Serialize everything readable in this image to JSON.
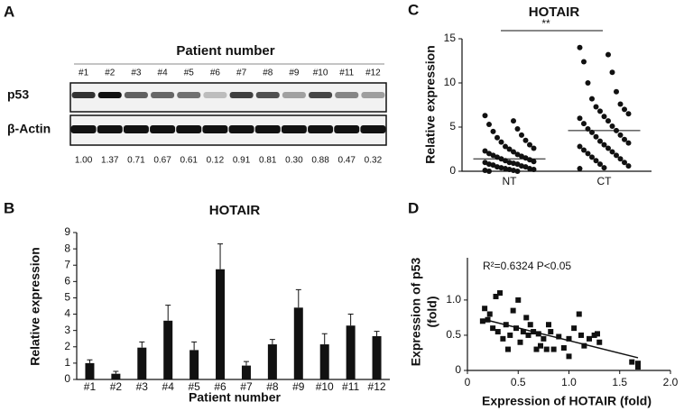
{
  "blot": {
    "panel_label": "A",
    "title": "Patient number",
    "lanes": [
      "#1",
      "#2",
      "#3",
      "#4",
      "#5",
      "#6",
      "#7",
      "#8",
      "#9",
      "#10",
      "#11",
      "#12"
    ],
    "rows": [
      "p53",
      "β-Actin"
    ],
    "ratios": [
      "1.00",
      "1.37",
      "0.71",
      "0.67",
      "0.61",
      "0.12",
      "0.91",
      "0.81",
      "0.30",
      "0.88",
      "0.47",
      "0.32"
    ]
  },
  "chart_data": [
    {
      "type": "bar",
      "panel_label": "B",
      "title": "HOTAIR",
      "y_label": "Relative expression",
      "x_label": "Patient number",
      "categories": [
        "#1",
        "#2",
        "#3",
        "#4",
        "#5",
        "#6",
        "#7",
        "#8",
        "#9",
        "#10",
        "#11",
        "#12"
      ],
      "values": [
        1.0,
        0.35,
        1.95,
        3.6,
        1.8,
        6.75,
        0.85,
        2.15,
        4.4,
        2.15,
        3.3,
        2.65
      ],
      "errors": [
        0.2,
        0.15,
        0.35,
        0.95,
        0.5,
        1.55,
        0.25,
        0.3,
        1.1,
        0.65,
        0.7,
        0.3
      ],
      "color": "#111111",
      "ylim": [
        0,
        9
      ],
      "yticks": [
        0,
        1,
        2,
        3,
        4,
        5,
        6,
        7,
        8,
        9
      ]
    },
    {
      "type": "strip",
      "panel_label": "C",
      "title": "HOTAIR",
      "y_label": "Relative expression",
      "annotation": "**",
      "categories": [
        "NT",
        "CT"
      ],
      "series": [
        {
          "name": "NT",
          "color": "#111111",
          "mean": 1.4,
          "values": [
            6.3,
            5.7,
            5.3,
            4.8,
            4.5,
            4.1,
            3.8,
            3.5,
            3.3,
            3.0,
            2.8,
            2.6,
            2.5,
            2.3,
            2.2,
            2.0,
            1.9,
            1.8,
            1.7,
            1.6,
            1.5,
            1.4,
            1.3,
            1.2,
            1.1,
            1.0,
            1.0,
            0.9,
            0.8,
            0.8,
            0.7,
            0.6,
            0.5,
            0.5,
            0.4,
            0.3,
            0.3,
            0.2,
            0.2,
            0.1,
            0.1,
            0.0,
            0.0
          ]
        },
        {
          "name": "CT",
          "color": "#111111",
          "mean": 4.6,
          "values": [
            14.0,
            13.2,
            12.4,
            11.2,
            10.0,
            9.0,
            8.2,
            7.6,
            7.3,
            7.0,
            6.8,
            6.5,
            6.2,
            6.0,
            5.7,
            5.4,
            5.1,
            4.8,
            4.6,
            4.4,
            4.1,
            3.9,
            3.6,
            3.4,
            3.2,
            3.0,
            2.8,
            2.6,
            2.4,
            2.2,
            2.0,
            1.8,
            1.6,
            1.4,
            1.2,
            1.0,
            0.8,
            0.6,
            0.4,
            0.3
          ]
        }
      ],
      "ylim": [
        0,
        15
      ],
      "yticks": [
        0,
        5,
        10,
        15
      ]
    },
    {
      "type": "scatter",
      "panel_label": "D",
      "annotation": "R²=0.6324 P<0.05",
      "x_label": "Expression of HOTAIR (fold)",
      "y_label": [
        "Expression of p53",
        "(fold)"
      ],
      "color": "#111111",
      "x": [
        0.15,
        0.17,
        0.2,
        0.22,
        0.25,
        0.28,
        0.32,
        0.3,
        0.35,
        0.38,
        0.4,
        0.42,
        0.45,
        0.48,
        0.5,
        0.52,
        0.55,
        0.58,
        0.6,
        0.62,
        0.65,
        0.68,
        0.7,
        0.72,
        0.75,
        0.78,
        0.8,
        0.82,
        0.85,
        0.9,
        0.95,
        1.0,
        1.0,
        1.05,
        1.1,
        1.12,
        1.15,
        1.2,
        1.25,
        1.28,
        1.3,
        1.62,
        1.68,
        1.68
      ],
      "y": [
        0.7,
        0.88,
        0.72,
        0.8,
        0.6,
        1.05,
        1.1,
        0.55,
        0.45,
        0.65,
        0.3,
        0.5,
        0.85,
        0.6,
        1.0,
        0.4,
        0.55,
        0.75,
        0.5,
        0.65,
        0.55,
        0.3,
        0.52,
        0.35,
        0.45,
        0.3,
        0.65,
        0.55,
        0.3,
        0.48,
        0.32,
        0.45,
        0.2,
        0.6,
        0.8,
        0.5,
        0.35,
        0.45,
        0.5,
        0.52,
        0.4,
        0.12,
        0.05,
        0.1
      ],
      "fit": {
        "x": [
          0.15,
          1.68
        ],
        "y": [
          0.73,
          0.18
        ]
      },
      "xlim": [
        0,
        2
      ],
      "xticks": [
        0,
        {
          "value": 0.5,
          "label": "0.5"
        },
        {
          "value": 1,
          "label": "1.0"
        },
        {
          "value": 1.5,
          "label": "1.5"
        },
        {
          "value": 2,
          "label": "2.0"
        }
      ],
      "ylim": [
        0,
        1.6
      ],
      "yticks": [
        0,
        {
          "value": 0.5,
          "label": "0.5"
        },
        {
          "value": 1,
          "label": "1.0"
        }
      ]
    }
  ]
}
